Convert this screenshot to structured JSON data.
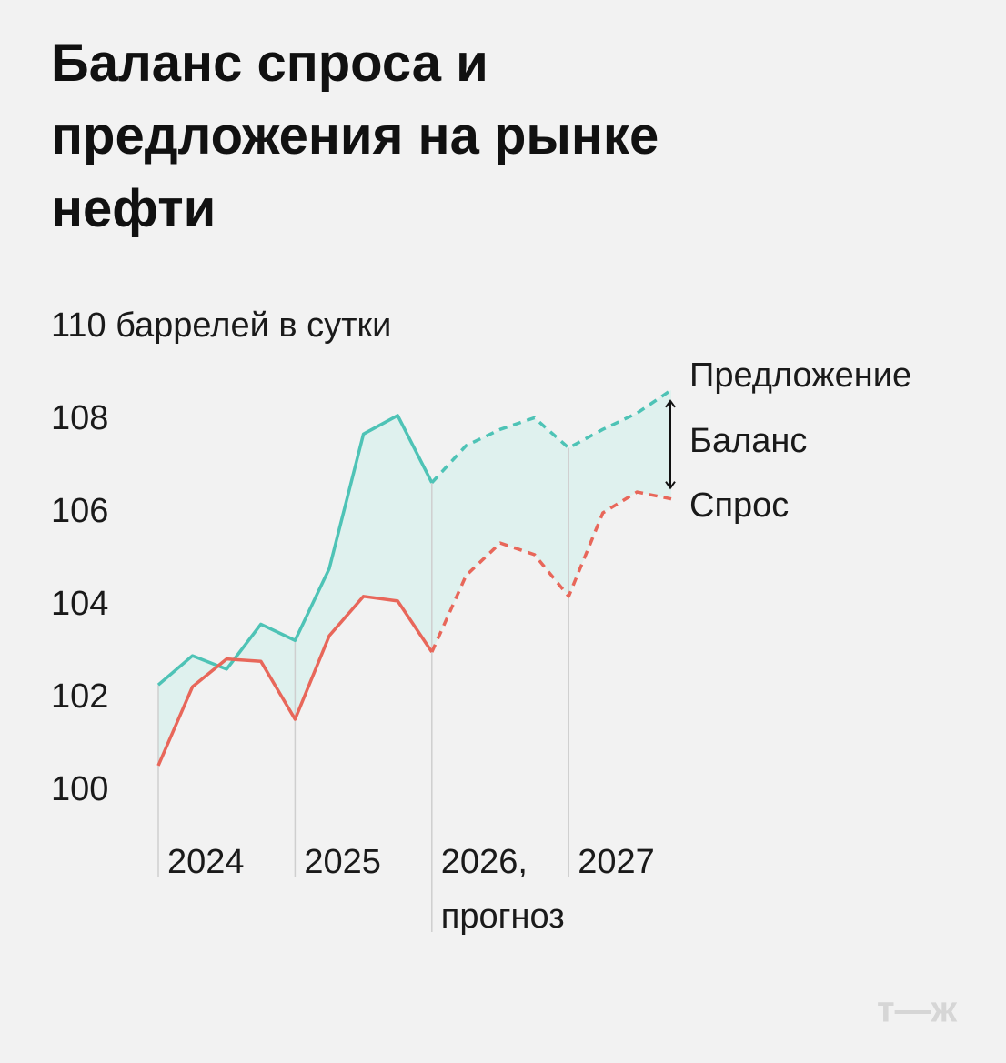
{
  "chart_data": {
    "type": "line",
    "title": "Баланс спроса и предложения на рынке нефти",
    "categories": [
      "2024",
      null,
      null,
      null,
      "2025",
      null,
      null,
      null,
      "2026, прогноз",
      null,
      null,
      null,
      "2027",
      null,
      null,
      null
    ],
    "series": [
      {
        "name": "Предложение",
        "color": "#4ec3b6",
        "values": [
          102.29,
          102.92,
          102.63,
          103.6,
          103.25,
          104.8,
          107.7,
          108.1,
          106.65,
          107.45,
          107.8,
          108.05,
          107.4,
          107.8,
          108.15,
          108.65
        ]
      },
      {
        "name": "Спрос",
        "color": "#e8675a",
        "values": [
          100.55,
          102.25,
          102.85,
          102.8,
          101.55,
          103.35,
          104.2,
          104.1,
          103.0,
          104.65,
          105.35,
          105.1,
          104.2,
          106.0,
          106.45,
          106.3
        ]
      }
    ],
    "dashed_from_index": 8,
    "fill_between": "#dff1ee",
    "annotation": "Баланс",
    "ylim": [
      100,
      110
    ],
    "yticks": [
      100,
      102,
      104,
      106,
      108,
      {
        "value": 110,
        "label": "110 баррелей в сутки"
      }
    ],
    "watermark": "т—ж"
  }
}
